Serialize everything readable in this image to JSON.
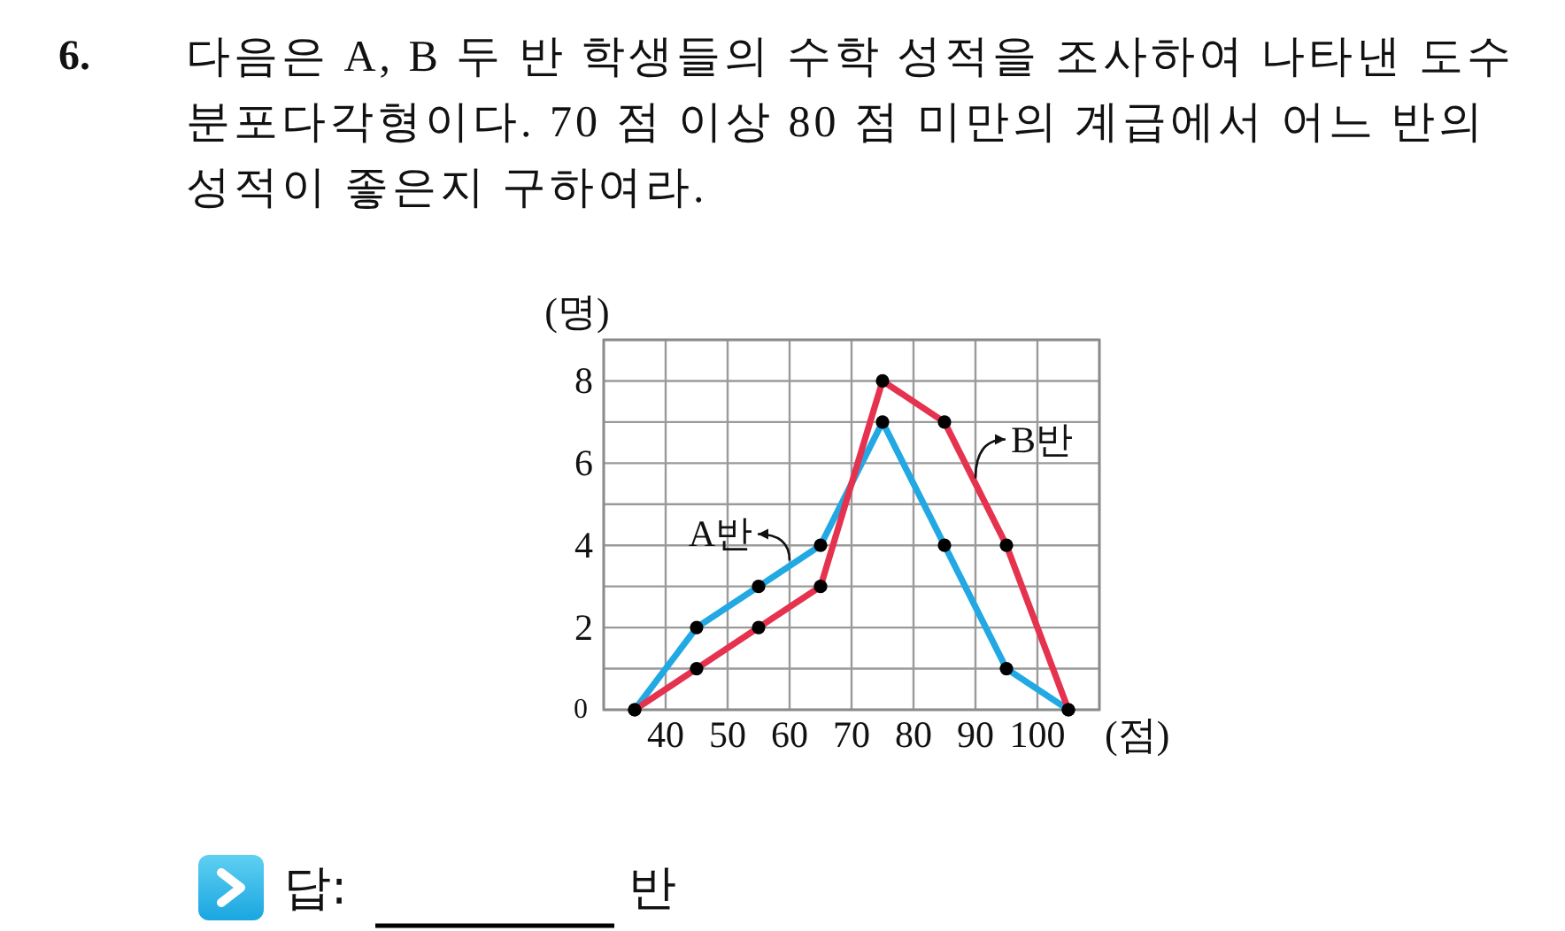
{
  "chart_data": {
    "type": "line",
    "title": "6.",
    "subtitle": "다음은 A, B 두 반 학생들의 수학 성적을 조사하여 나타낸 도수분포다각형이다. 70 점 이상 80 점 미만의 계급에서 어느 반의 성적이 좋은지 구하여라.",
    "xlabel": "(점)",
    "ylabel": "(명)",
    "x": [
      35,
      45,
      55,
      65,
      75,
      85,
      95,
      105
    ],
    "series": [
      {
        "name": "A반",
        "color": "#22a9e3",
        "values": [
          0,
          2,
          3,
          4,
          7,
          4,
          1,
          0
        ]
      },
      {
        "name": "B반",
        "color": "#e5334f",
        "values": [
          0,
          1,
          2,
          3,
          8,
          7,
          4,
          0
        ]
      }
    ],
    "xlim": [
      30,
      110
    ],
    "xticks": [
      {
        "value": 30,
        "label": null
      },
      40,
      50,
      60,
      70,
      80,
      90,
      100,
      {
        "value": 110,
        "label": null
      }
    ],
    "ylim": [
      0,
      9
    ],
    "yticks": [
      0,
      {
        "value": 1,
        "label": null
      },
      2,
      {
        "value": 3,
        "label": null
      },
      4,
      {
        "value": 5,
        "label": null
      },
      6,
      {
        "value": 7,
        "label": null
      },
      8,
      {
        "value": 9,
        "label": null
      }
    ],
    "grid": true,
    "marker": "circle",
    "line_style": "solid",
    "annotations": [
      "답:",
      "반"
    ]
  }
}
